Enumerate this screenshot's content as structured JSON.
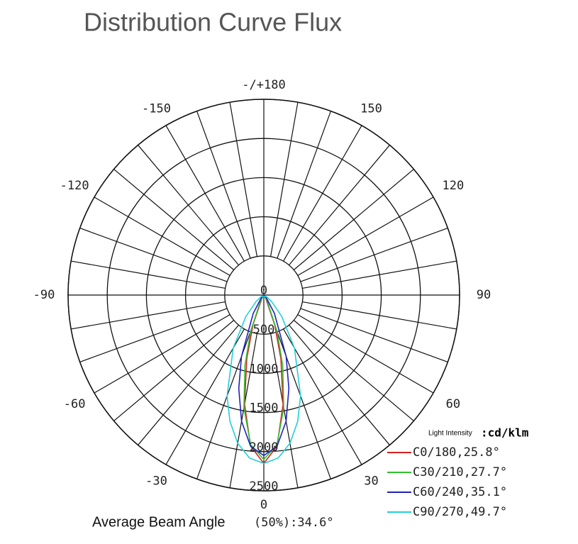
{
  "chart_data": {
    "type": "polar",
    "title": "Distribution Curve Flux",
    "unit_label": "Light Intensity",
    "unit": ":cd/klm",
    "footer_label": "Average Beam Angle",
    "footer_value": "(50%):34.6°",
    "theta": [
      -60,
      -50,
      -40,
      -30,
      -20,
      -15,
      -10,
      -5,
      0,
      5,
      10,
      15,
      20,
      30,
      40,
      50,
      60
    ],
    "series": [
      {
        "name": "C0/180,25.8°",
        "color": "#d62020",
        "values": [
          0,
          0,
          0,
          50,
          406,
          843,
          1417,
          1937,
          2150,
          1937,
          1417,
          843,
          406,
          50,
          0,
          0,
          0
        ]
      },
      {
        "name": "C30/210,27.7°",
        "color": "#30c030",
        "values": [
          0,
          0,
          5,
          81,
          495,
          932,
          1464,
          1919,
          2100,
          1919,
          1464,
          932,
          495,
          81,
          5,
          0,
          0
        ]
      },
      {
        "name": "C60/240,35.1°",
        "color": "#2020c0",
        "values": [
          0,
          8,
          56,
          271,
          834,
          1236,
          1637,
          1938,
          2050,
          1938,
          1637,
          1236,
          834,
          271,
          56,
          8,
          0
        ]
      },
      {
        "name": "C90/270,49.7°",
        "color": "#20d0d8",
        "values": [
          38,
          130,
          356,
          783,
          1372,
          1671,
          1922,
          2090,
          2150,
          2090,
          1922,
          1671,
          1372,
          783,
          356,
          130,
          38
        ]
      }
    ],
    "rlim": [
      0,
      2500
    ],
    "rticks": [
      0,
      500,
      1000,
      1500,
      2000,
      2500
    ],
    "thetaticks": [
      0,
      30,
      60,
      90,
      120,
      150,
      {
        "value": 180,
        "label": "-/+180"
      },
      -150,
      -120,
      -90,
      -60,
      -30
    ]
  }
}
